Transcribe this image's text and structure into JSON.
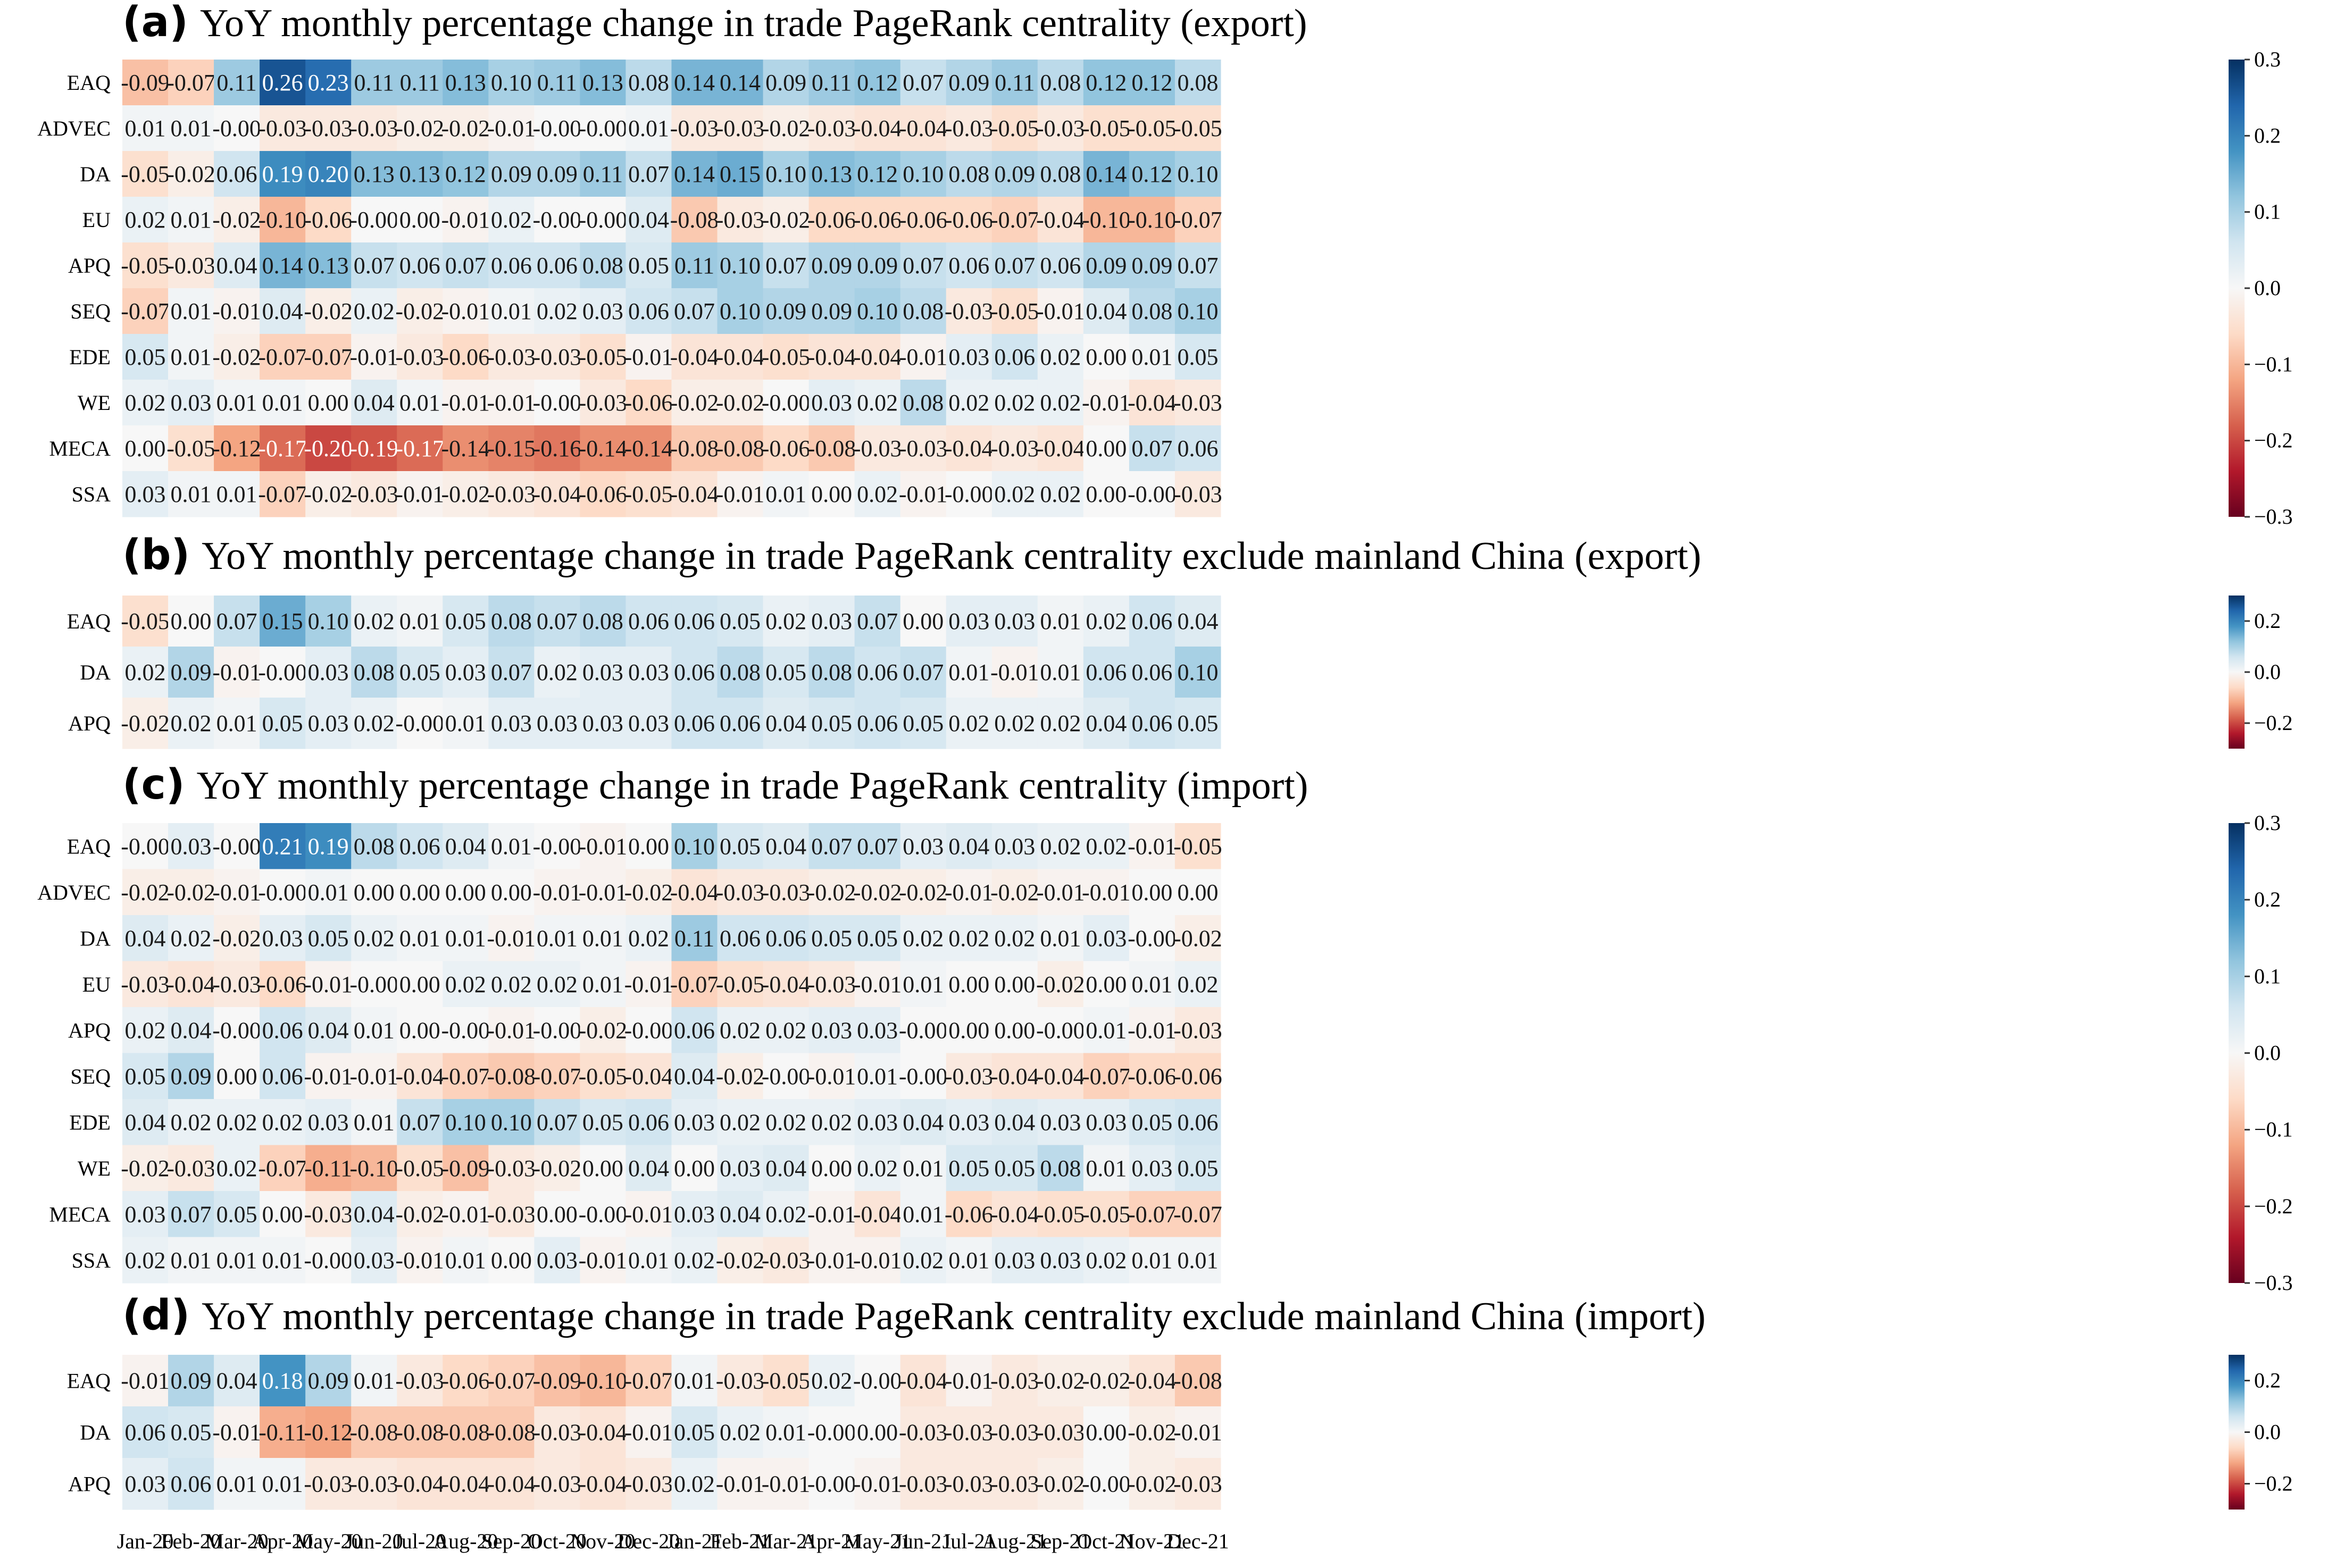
{
  "chart_data": [
    {
      "type": "heatmap",
      "tag": "(a)",
      "title": "YoY monthly percentage change in trade PageRank centrality (export)",
      "rows": [
        "EAQ",
        "ADVEC",
        "DA",
        "EU",
        "APQ",
        "SEQ",
        "EDE",
        "WE",
        "MECA",
        "SSA"
      ],
      "columns": [
        "Jan-20",
        "Feb-20",
        "Mar-20",
        "Apr-20",
        "May-20",
        "Jun-20",
        "Jul-20",
        "Aug-20",
        "Sep-20",
        "Oct-20",
        "Nov-20",
        "Dec-20",
        "Jan-21",
        "Feb-21",
        "Mar-21",
        "Apr-21",
        "May-21",
        "Jun-21",
        "Jul-21",
        "Aug-21",
        "Sep-21",
        "Oct-21",
        "Nov-21",
        "Dec-21"
      ],
      "values": [
        [
          "-0.09",
          "-0.07",
          "0.11",
          "0.26",
          "0.23",
          "0.11",
          "0.11",
          "0.13",
          "0.10",
          "0.11",
          "0.13",
          "0.08",
          "0.14",
          "0.14",
          "0.09",
          "0.11",
          "0.12",
          "0.07",
          "0.09",
          "0.11",
          "0.08",
          "0.12",
          "0.12",
          "0.08"
        ],
        [
          "0.01",
          "0.01",
          "-0.00",
          "-0.03",
          "-0.03",
          "-0.03",
          "-0.02",
          "-0.02",
          "-0.01",
          "-0.00",
          "-0.00",
          "0.01",
          "-0.03",
          "-0.03",
          "-0.02",
          "-0.03",
          "-0.04",
          "-0.04",
          "-0.03",
          "-0.05",
          "-0.03",
          "-0.05",
          "-0.05",
          "-0.05"
        ],
        [
          "-0.05",
          "-0.02",
          "0.06",
          "0.19",
          "0.20",
          "0.13",
          "0.13",
          "0.12",
          "0.09",
          "0.09",
          "0.11",
          "0.07",
          "0.14",
          "0.15",
          "0.10",
          "0.13",
          "0.12",
          "0.10",
          "0.08",
          "0.09",
          "0.08",
          "0.14",
          "0.12",
          "0.10"
        ],
        [
          "0.02",
          "0.01",
          "-0.02",
          "-0.10",
          "-0.06",
          "-0.00",
          "0.00",
          "-0.01",
          "0.02",
          "-0.00",
          "-0.00",
          "0.04",
          "-0.08",
          "-0.03",
          "-0.02",
          "-0.06",
          "-0.06",
          "-0.06",
          "-0.06",
          "-0.07",
          "-0.04",
          "-0.10",
          "-0.10",
          "-0.07"
        ],
        [
          "-0.05",
          "-0.03",
          "0.04",
          "0.14",
          "0.13",
          "0.07",
          "0.06",
          "0.07",
          "0.06",
          "0.06",
          "0.08",
          "0.05",
          "0.11",
          "0.10",
          "0.07",
          "0.09",
          "0.09",
          "0.07",
          "0.06",
          "0.07",
          "0.06",
          "0.09",
          "0.09",
          "0.07"
        ],
        [
          "-0.07",
          "0.01",
          "-0.01",
          "0.04",
          "-0.02",
          "0.02",
          "-0.02",
          "-0.01",
          "0.01",
          "0.02",
          "0.03",
          "0.06",
          "0.07",
          "0.10",
          "0.09",
          "0.09",
          "0.10",
          "0.08",
          "-0.03",
          "-0.05",
          "-0.01",
          "0.04",
          "0.08",
          "0.10"
        ],
        [
          "0.05",
          "0.01",
          "-0.02",
          "-0.07",
          "-0.07",
          "-0.01",
          "-0.03",
          "-0.06",
          "-0.03",
          "-0.03",
          "-0.05",
          "-0.01",
          "-0.04",
          "-0.04",
          "-0.05",
          "-0.04",
          "-0.04",
          "-0.01",
          "0.03",
          "0.06",
          "0.02",
          "0.00",
          "0.01",
          "0.05"
        ],
        [
          "0.02",
          "0.03",
          "0.01",
          "0.01",
          "0.00",
          "0.04",
          "0.01",
          "-0.01",
          "-0.01",
          "-0.00",
          "-0.03",
          "-0.06",
          "-0.02",
          "-0.02",
          "-0.00",
          "0.03",
          "0.02",
          "0.08",
          "0.02",
          "0.02",
          "0.02",
          "-0.01",
          "-0.04",
          "-0.03"
        ],
        [
          "0.00",
          "-0.05",
          "-0.12",
          "-0.17",
          "-0.20",
          "-0.19",
          "-0.17",
          "-0.14",
          "-0.15",
          "-0.16",
          "-0.14",
          "-0.14",
          "-0.08",
          "-0.08",
          "-0.06",
          "-0.08",
          "-0.03",
          "-0.03",
          "-0.04",
          "-0.03",
          "-0.04",
          "0.00",
          "0.07",
          "0.06"
        ],
        [
          "0.03",
          "0.01",
          "0.01",
          "-0.07",
          "-0.02",
          "-0.03",
          "-0.01",
          "-0.02",
          "-0.03",
          "-0.04",
          "-0.06",
          "-0.05",
          "-0.04",
          "-0.01",
          "0.01",
          "0.00",
          "0.02",
          "-0.01",
          "-0.00",
          "0.02",
          "0.02",
          "0.00",
          "-0.00",
          "-0.03"
        ]
      ],
      "colorbar": {
        "min": -0.3,
        "max": 0.3,
        "ticks": [
          "0.3",
          "0.2",
          "0.1",
          "0.0",
          "−0.1",
          "−0.2",
          "−0.3"
        ]
      },
      "colormap": "RdBu"
    },
    {
      "type": "heatmap",
      "tag": "(b)",
      "title": "YoY monthly percentage change in trade PageRank centrality exclude mainland China (export)",
      "rows": [
        "EAQ",
        "DA",
        "APQ"
      ],
      "columns": [
        "Jan-20",
        "Feb-20",
        "Mar-20",
        "Apr-20",
        "May-20",
        "Jun-20",
        "Jul-20",
        "Aug-20",
        "Sep-20",
        "Oct-20",
        "Nov-20",
        "Dec-20",
        "Jan-21",
        "Feb-21",
        "Mar-21",
        "Apr-21",
        "May-21",
        "Jun-21",
        "Jul-21",
        "Aug-21",
        "Sep-21",
        "Oct-21",
        "Nov-21",
        "Dec-21"
      ],
      "values": [
        [
          "-0.05",
          "0.00",
          "0.07",
          "0.15",
          "0.10",
          "0.02",
          "0.01",
          "0.05",
          "0.08",
          "0.07",
          "0.08",
          "0.06",
          "0.06",
          "0.05",
          "0.02",
          "0.03",
          "0.07",
          "0.00",
          "0.03",
          "0.03",
          "0.01",
          "0.02",
          "0.06",
          "0.04"
        ],
        [
          "0.02",
          "0.09",
          "-0.01",
          "-0.00",
          "0.03",
          "0.08",
          "0.05",
          "0.03",
          "0.07",
          "0.02",
          "0.03",
          "0.03",
          "0.06",
          "0.08",
          "0.05",
          "0.08",
          "0.06",
          "0.07",
          "0.01",
          "-0.01",
          "0.01",
          "0.06",
          "0.06",
          "0.10"
        ],
        [
          "-0.02",
          "0.02",
          "0.01",
          "0.05",
          "0.03",
          "0.02",
          "-0.00",
          "0.01",
          "0.03",
          "0.03",
          "0.03",
          "0.03",
          "0.06",
          "0.06",
          "0.04",
          "0.05",
          "0.06",
          "0.05",
          "0.02",
          "0.02",
          "0.02",
          "0.04",
          "0.06",
          "0.05"
        ]
      ],
      "colorbar": {
        "min": -0.3,
        "max": 0.3,
        "ticks": [
          "0.2",
          "0.0",
          "−0.2"
        ]
      },
      "colormap": "RdBu"
    },
    {
      "type": "heatmap",
      "tag": "(c)",
      "title": "YoY monthly percentage change in trade PageRank centrality (import)",
      "rows": [
        "EAQ",
        "ADVEC",
        "DA",
        "EU",
        "APQ",
        "SEQ",
        "EDE",
        "WE",
        "MECA",
        "SSA"
      ],
      "columns": [
        "Jan-20",
        "Feb-20",
        "Mar-20",
        "Apr-20",
        "May-20",
        "Jun-20",
        "Jul-20",
        "Aug-20",
        "Sep-20",
        "Oct-20",
        "Nov-20",
        "Dec-20",
        "Jan-21",
        "Feb-21",
        "Mar-21",
        "Apr-21",
        "May-21",
        "Jun-21",
        "Jul-21",
        "Aug-21",
        "Sep-21",
        "Oct-21",
        "Nov-21",
        "Dec-21"
      ],
      "values": [
        [
          "-0.00",
          "0.03",
          "-0.00",
          "0.21",
          "0.19",
          "0.08",
          "0.06",
          "0.04",
          "0.01",
          "-0.00",
          "-0.01",
          "0.00",
          "0.10",
          "0.05",
          "0.04",
          "0.07",
          "0.07",
          "0.03",
          "0.04",
          "0.03",
          "0.02",
          "0.02",
          "-0.01",
          "-0.05"
        ],
        [
          "-0.02",
          "-0.02",
          "-0.01",
          "-0.00",
          "0.01",
          "0.00",
          "0.00",
          "0.00",
          "0.00",
          "-0.01",
          "-0.01",
          "-0.02",
          "-0.04",
          "-0.03",
          "-0.03",
          "-0.02",
          "-0.02",
          "-0.02",
          "-0.01",
          "-0.02",
          "-0.01",
          "-0.01",
          "0.00",
          "0.00"
        ],
        [
          "0.04",
          "0.02",
          "-0.02",
          "0.03",
          "0.05",
          "0.02",
          "0.01",
          "0.01",
          "-0.01",
          "0.01",
          "0.01",
          "0.02",
          "0.11",
          "0.06",
          "0.06",
          "0.05",
          "0.05",
          "0.02",
          "0.02",
          "0.02",
          "0.01",
          "0.03",
          "-0.00",
          "-0.02"
        ],
        [
          "-0.03",
          "-0.04",
          "-0.03",
          "-0.06",
          "-0.01",
          "-0.00",
          "0.00",
          "0.02",
          "0.02",
          "0.02",
          "0.01",
          "-0.01",
          "-0.07",
          "-0.05",
          "-0.04",
          "-0.03",
          "-0.01",
          "0.01",
          "0.00",
          "0.00",
          "-0.02",
          "0.00",
          "0.01",
          "0.02"
        ],
        [
          "0.02",
          "0.04",
          "-0.00",
          "0.06",
          "0.04",
          "0.01",
          "0.00",
          "-0.00",
          "-0.01",
          "-0.00",
          "-0.02",
          "-0.00",
          "0.06",
          "0.02",
          "0.02",
          "0.03",
          "0.03",
          "-0.00",
          "0.00",
          "0.00",
          "-0.00",
          "0.01",
          "-0.01",
          "-0.03"
        ],
        [
          "0.05",
          "0.09",
          "0.00",
          "0.06",
          "-0.01",
          "-0.01",
          "-0.04",
          "-0.07",
          "-0.08",
          "-0.07",
          "-0.05",
          "-0.04",
          "0.04",
          "-0.02",
          "-0.00",
          "-0.01",
          "0.01",
          "-0.00",
          "-0.03",
          "-0.04",
          "-0.04",
          "-0.07",
          "-0.06",
          "-0.06"
        ],
        [
          "0.04",
          "0.02",
          "0.02",
          "0.02",
          "0.03",
          "0.01",
          "0.07",
          "0.10",
          "0.10",
          "0.07",
          "0.05",
          "0.06",
          "0.03",
          "0.02",
          "0.02",
          "0.02",
          "0.03",
          "0.04",
          "0.03",
          "0.04",
          "0.03",
          "0.03",
          "0.05",
          "0.06"
        ],
        [
          "-0.02",
          "-0.03",
          "0.02",
          "-0.07",
          "-0.11",
          "-0.10",
          "-0.05",
          "-0.09",
          "-0.03",
          "-0.02",
          "0.00",
          "0.04",
          "0.00",
          "0.03",
          "0.04",
          "0.00",
          "0.02",
          "0.01",
          "0.05",
          "0.05",
          "0.08",
          "0.01",
          "0.03",
          "0.05"
        ],
        [
          "0.03",
          "0.07",
          "0.05",
          "0.00",
          "-0.03",
          "0.04",
          "-0.02",
          "-0.01",
          "-0.03",
          "0.00",
          "-0.00",
          "-0.01",
          "0.03",
          "0.04",
          "0.02",
          "-0.01",
          "-0.04",
          "0.01",
          "-0.06",
          "-0.04",
          "-0.05",
          "-0.05",
          "-0.07",
          "-0.07"
        ],
        [
          "0.02",
          "0.01",
          "0.01",
          "0.01",
          "-0.00",
          "0.03",
          "-0.01",
          "0.01",
          "0.00",
          "0.03",
          "-0.01",
          "0.01",
          "0.02",
          "-0.02",
          "-0.03",
          "-0.01",
          "-0.01",
          "0.02",
          "0.01",
          "0.03",
          "0.03",
          "0.02",
          "0.01",
          "0.01"
        ]
      ],
      "colorbar": {
        "min": -0.3,
        "max": 0.3,
        "ticks": [
          "0.3",
          "0.2",
          "0.1",
          "0.0",
          "−0.1",
          "−0.2",
          "−0.3"
        ]
      },
      "colormap": "RdBu"
    },
    {
      "type": "heatmap",
      "tag": "(d)",
      "title": "YoY monthly percentage change in trade PageRank centrality exclude mainland China (import)",
      "rows": [
        "EAQ",
        "DA",
        "APQ"
      ],
      "columns": [
        "Jan-20",
        "Feb-20",
        "Mar-20",
        "Apr-20",
        "May-20",
        "Jun-20",
        "Jul-20",
        "Aug-20",
        "Sep-20",
        "Oct-20",
        "Nov-20",
        "Dec-20",
        "Jan-21",
        "Feb-21",
        "Mar-21",
        "Apr-21",
        "May-21",
        "Jun-21",
        "Jul-21",
        "Aug-21",
        "Sep-21",
        "Oct-21",
        "Nov-21",
        "Dec-21"
      ],
      "values": [
        [
          "-0.01",
          "0.09",
          "0.04",
          "0.18",
          "0.09",
          "0.01",
          "-0.03",
          "-0.06",
          "-0.07",
          "-0.09",
          "-0.10",
          "-0.07",
          "0.01",
          "-0.03",
          "-0.05",
          "0.02",
          "-0.00",
          "-0.04",
          "-0.01",
          "-0.03",
          "-0.02",
          "-0.02",
          "-0.04",
          "-0.08"
        ],
        [
          "0.06",
          "0.05",
          "-0.01",
          "-0.11",
          "-0.12",
          "-0.08",
          "-0.08",
          "-0.08",
          "-0.08",
          "-0.03",
          "-0.04",
          "-0.01",
          "0.05",
          "0.02",
          "0.01",
          "-0.00",
          "0.00",
          "-0.03",
          "-0.03",
          "-0.03",
          "-0.03",
          "0.00",
          "-0.02",
          "-0.01"
        ],
        [
          "0.03",
          "0.06",
          "0.01",
          "0.01",
          "-0.03",
          "-0.03",
          "-0.04",
          "-0.04",
          "-0.04",
          "-0.03",
          "-0.04",
          "-0.03",
          "0.02",
          "-0.01",
          "-0.01",
          "-0.00",
          "-0.01",
          "-0.03",
          "-0.03",
          "-0.03",
          "-0.02",
          "-0.00",
          "-0.02",
          "-0.03"
        ]
      ],
      "colorbar": {
        "min": -0.3,
        "max": 0.3,
        "ticks": [
          "0.2",
          "0.0",
          "−0.2"
        ]
      },
      "colormap": "RdBu"
    }
  ],
  "x_axis_labels": [
    "Jan-20",
    "Feb-20",
    "Mar-20",
    "Apr-20",
    "May-20",
    "Jun-20",
    "Jul-20",
    "Aug-20",
    "Sep-20",
    "Oct-20",
    "Nov-20",
    "Dec-20",
    "Jan-21",
    "Feb-21",
    "Mar-21",
    "Apr-21",
    "May-21",
    "Jun-21",
    "Jul-21",
    "Aug-21",
    "Sep-21",
    "Oct-21",
    "Nov-21",
    "Dec-21"
  ]
}
